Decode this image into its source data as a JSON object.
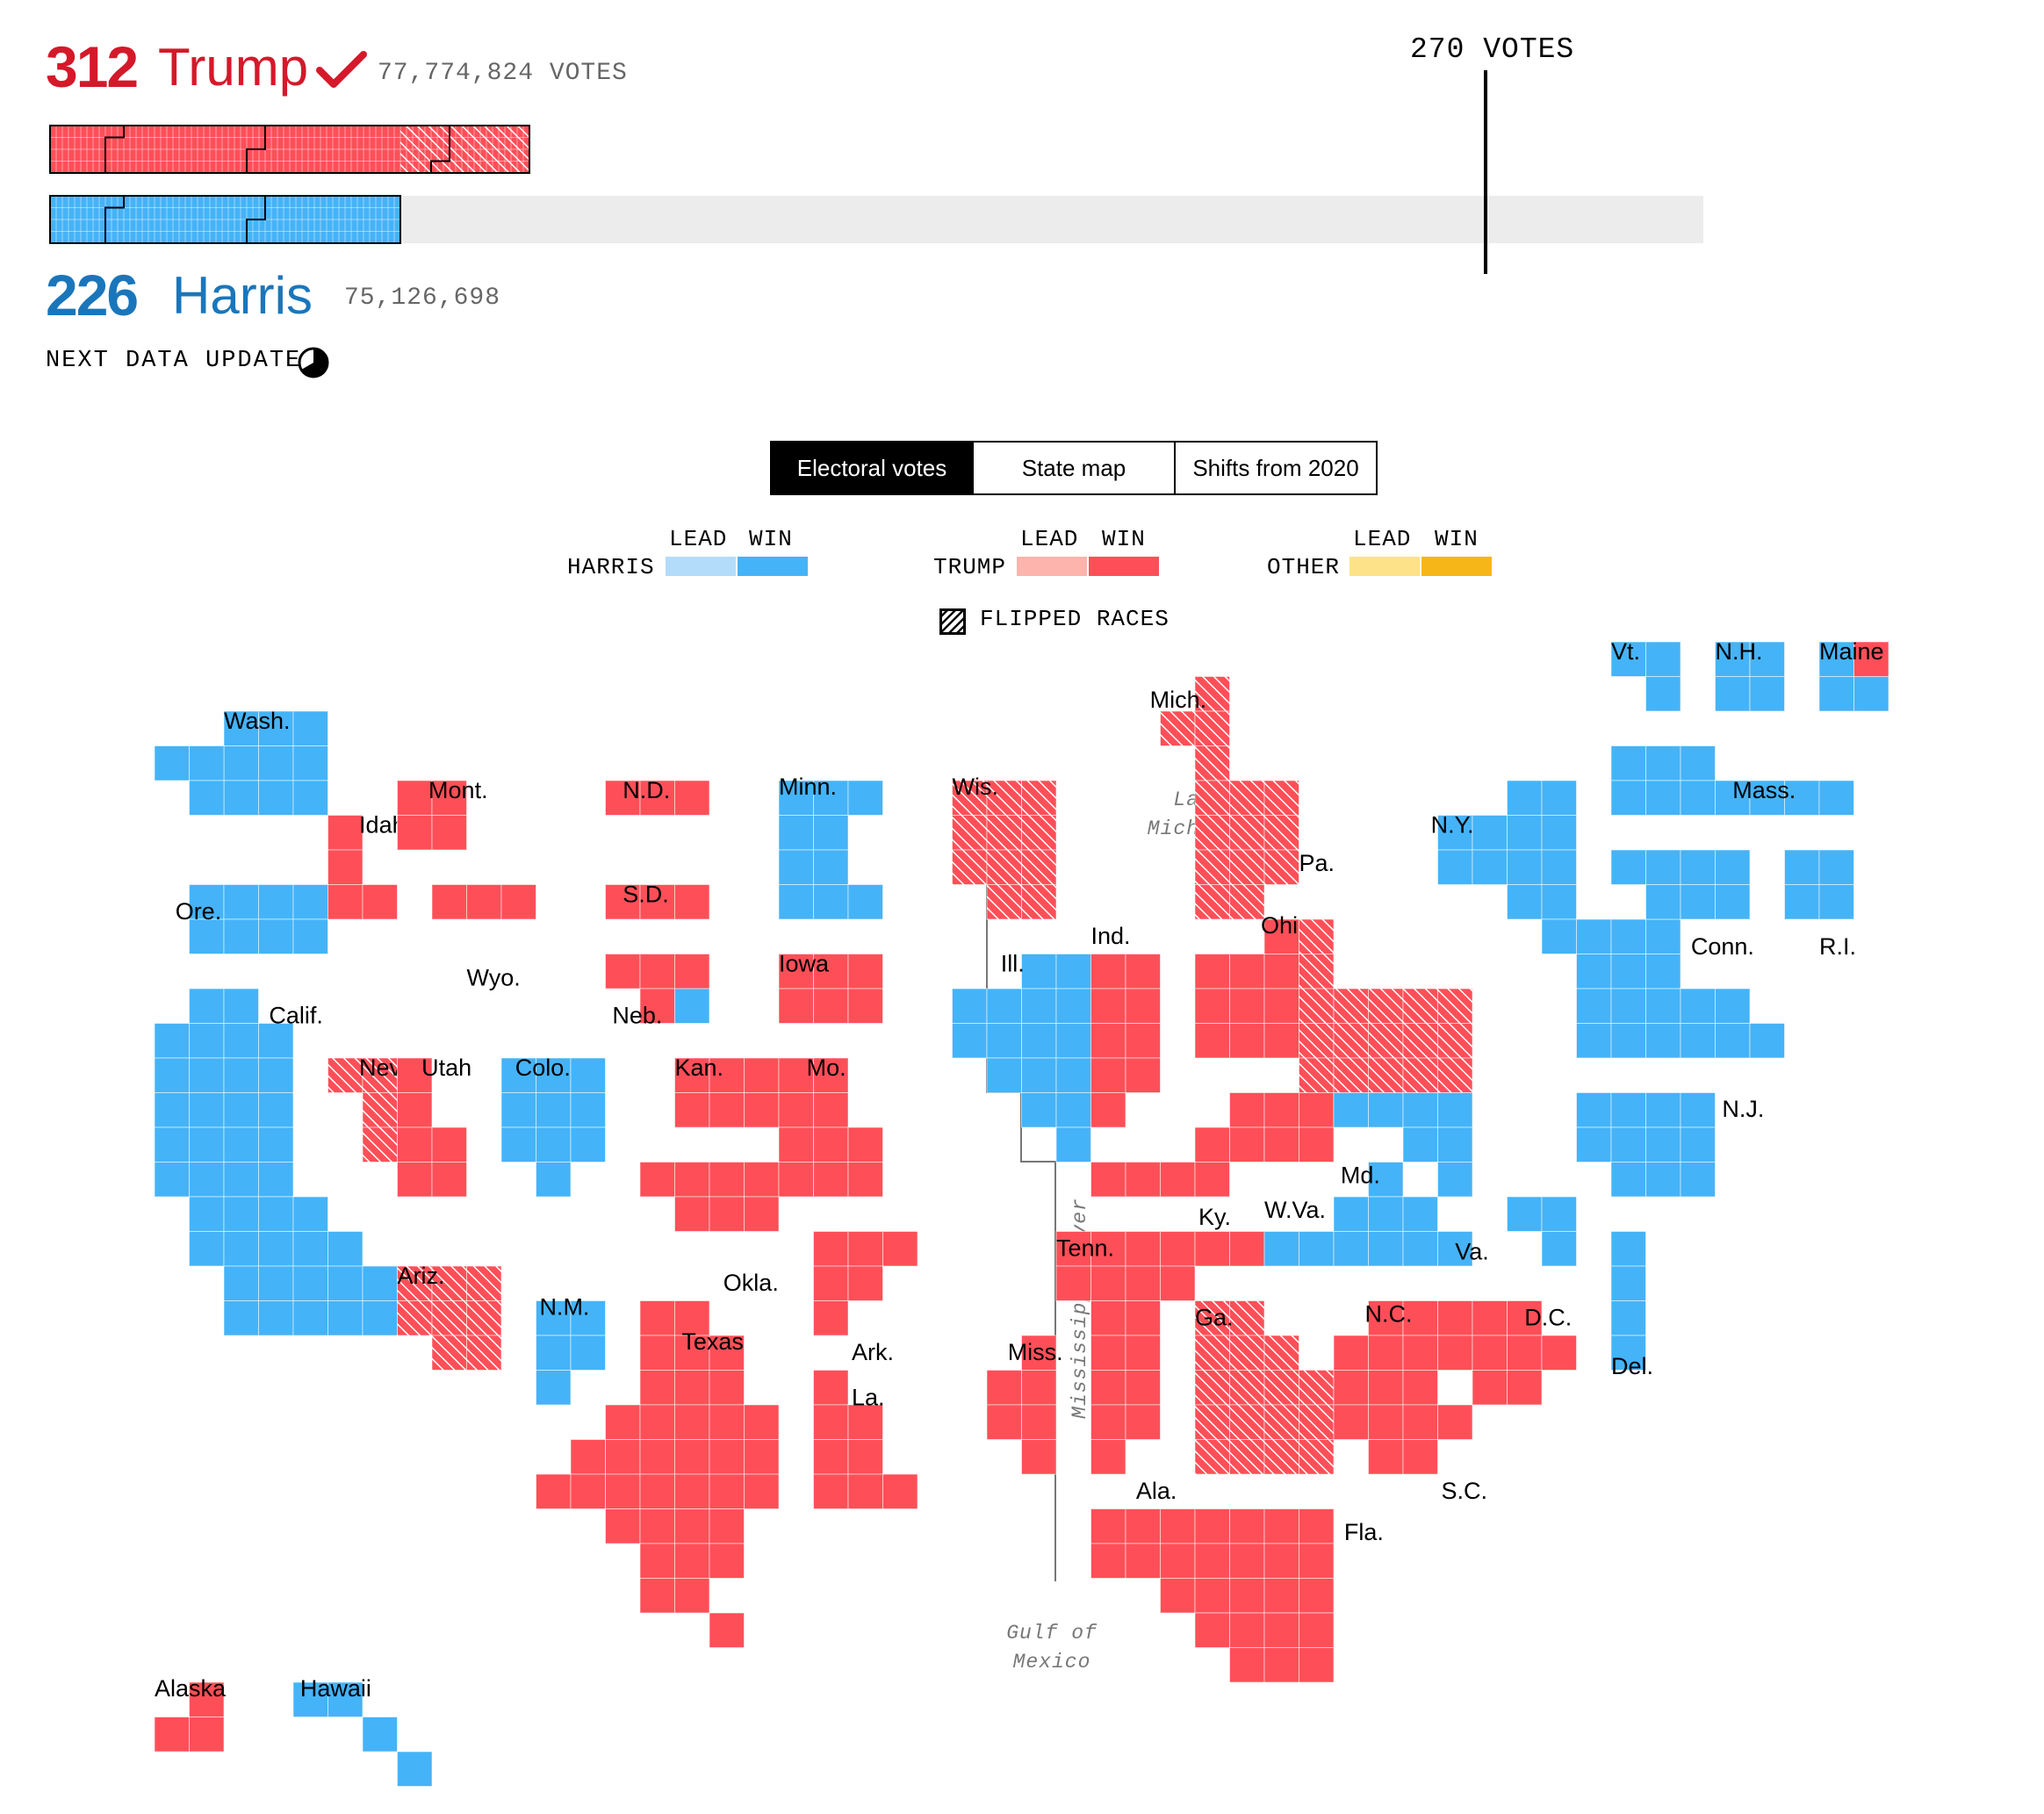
{
  "header": {
    "trump_ev": "312",
    "trump_name": "Trump",
    "trump_votes": "77,774,824 VOTES",
    "harris_ev": "226",
    "harris_name": "Harris",
    "harris_votes": "75,126,698",
    "threshold_label": "270 VOTES",
    "next_update": "NEXT DATA UPDATE"
  },
  "tabs": [
    {
      "label": "Electoral votes",
      "active": true
    },
    {
      "label": "State map",
      "active": false
    },
    {
      "label": "Shifts from 2020",
      "active": false
    }
  ],
  "legend": {
    "lead": "LEAD",
    "win": "WIN",
    "harris": "HARRIS",
    "trump": "TRUMP",
    "other": "OTHER",
    "flipped": "FLIPPED RACES"
  },
  "colors": {
    "harris_win": "#45b3f7",
    "harris_lead": "#b3dcfb",
    "trump_win": "#fe4f58",
    "trump_lead": "#fcb4ad",
    "other_win": "#f7b617",
    "other_lead": "#fde28a",
    "trump_text": "#d4192a",
    "harris_text": "#1a76bb",
    "empty": "#ececec"
  },
  "geo_labels": {
    "lake_1": "Lake",
    "lake_2": "Michigan",
    "river": "Mississippi River",
    "gulf_1": "Gulf of",
    "gulf_2": "Mexico"
  },
  "states": [
    {
      "name": "Wash.",
      "winner": "harris",
      "flipped": false
    },
    {
      "name": "Ore.",
      "winner": "harris",
      "flipped": false
    },
    {
      "name": "Calif.",
      "winner": "harris",
      "flipped": false
    },
    {
      "name": "Idaho",
      "winner": "trump",
      "flipped": false
    },
    {
      "name": "Nev.",
      "winner": "trump",
      "flipped": true
    },
    {
      "name": "Mont.",
      "winner": "trump",
      "flipped": false
    },
    {
      "name": "Wyo.",
      "winner": "trump",
      "flipped": false
    },
    {
      "name": "Utah",
      "winner": "trump",
      "flipped": false
    },
    {
      "name": "Colo.",
      "winner": "harris",
      "flipped": false
    },
    {
      "name": "Ariz.",
      "winner": "trump",
      "flipped": true
    },
    {
      "name": "N.M.",
      "winner": "harris",
      "flipped": false
    },
    {
      "name": "N.D.",
      "winner": "trump",
      "flipped": false
    },
    {
      "name": "S.D.",
      "winner": "trump",
      "flipped": false
    },
    {
      "name": "Neb.",
      "winner": "trump",
      "flipped": false
    },
    {
      "name": "Kan.",
      "winner": "trump",
      "flipped": false
    },
    {
      "name": "Okla.",
      "winner": "trump",
      "flipped": false
    },
    {
      "name": "Texas",
      "winner": "trump",
      "flipped": false
    },
    {
      "name": "Minn.",
      "winner": "harris",
      "flipped": false
    },
    {
      "name": "Iowa",
      "winner": "trump",
      "flipped": false
    },
    {
      "name": "Mo.",
      "winner": "trump",
      "flipped": false
    },
    {
      "name": "Ark.",
      "winner": "trump",
      "flipped": false
    },
    {
      "name": "La.",
      "winner": "trump",
      "flipped": false
    },
    {
      "name": "Wis.",
      "winner": "trump",
      "flipped": true
    },
    {
      "name": "Ill.",
      "winner": "harris",
      "flipped": false
    },
    {
      "name": "Mich.",
      "winner": "trump",
      "flipped": true
    },
    {
      "name": "Ind.",
      "winner": "trump",
      "flipped": false
    },
    {
      "name": "Ohio",
      "winner": "trump",
      "flipped": false
    },
    {
      "name": "Ky.",
      "winner": "trump",
      "flipped": false
    },
    {
      "name": "Tenn.",
      "winner": "trump",
      "flipped": false
    },
    {
      "name": "Miss.",
      "winner": "trump",
      "flipped": false
    },
    {
      "name": "Ala.",
      "winner": "trump",
      "flipped": false
    },
    {
      "name": "Ga.",
      "winner": "trump",
      "flipped": true
    },
    {
      "name": "Fla.",
      "winner": "trump",
      "flipped": false
    },
    {
      "name": "S.C.",
      "winner": "trump",
      "flipped": false
    },
    {
      "name": "N.C.",
      "winner": "trump",
      "flipped": false
    },
    {
      "name": "Va.",
      "winner": "harris",
      "flipped": false
    },
    {
      "name": "W.Va.",
      "winner": "trump",
      "flipped": false
    },
    {
      "name": "Pa.",
      "winner": "trump",
      "flipped": true
    },
    {
      "name": "N.Y.",
      "winner": "harris",
      "flipped": false
    },
    {
      "name": "Md.",
      "winner": "harris",
      "flipped": false
    },
    {
      "name": "D.C.",
      "winner": "harris",
      "flipped": false
    },
    {
      "name": "Del.",
      "winner": "harris",
      "flipped": false
    },
    {
      "name": "N.J.",
      "winner": "harris",
      "flipped": false
    },
    {
      "name": "Conn.",
      "winner": "harris",
      "flipped": false
    },
    {
      "name": "R.I.",
      "winner": "harris",
      "flipped": false
    },
    {
      "name": "Mass.",
      "winner": "harris",
      "flipped": false
    },
    {
      "name": "Vt.",
      "winner": "harris",
      "flipped": false
    },
    {
      "name": "N.H.",
      "winner": "harris",
      "flipped": false
    },
    {
      "name": "Maine",
      "winner": "harris",
      "flipped": false
    },
    {
      "name": "Alaska",
      "winner": "trump",
      "flipped": false
    },
    {
      "name": "Hawaii",
      "winner": "harris",
      "flipped": false
    }
  ]
}
